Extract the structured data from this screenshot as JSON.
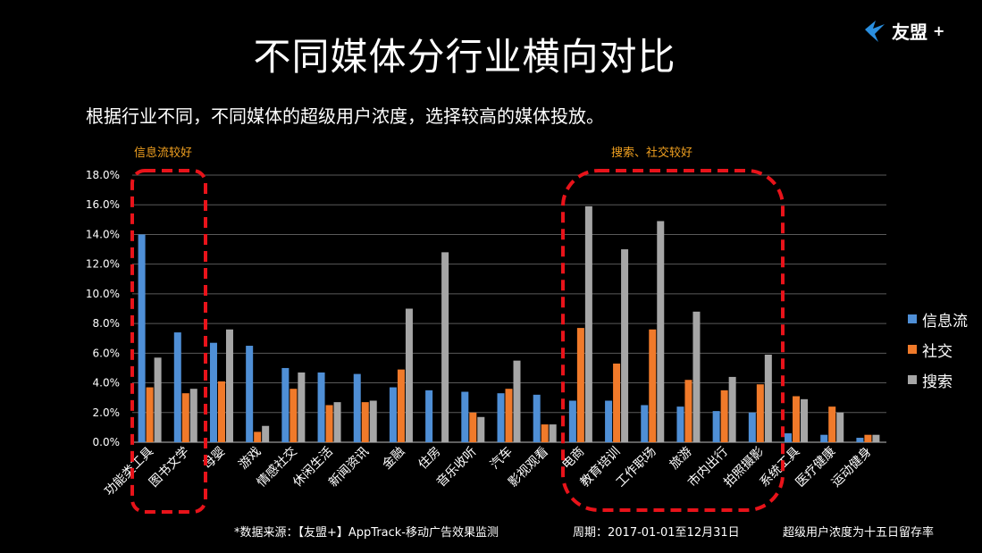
{
  "header": {
    "title": "不同媒体分行业横向对比",
    "logo_text": "友盟",
    "logo_plus": "+"
  },
  "subtitle": "根据行业不同，不同媒体的超级用户浓度，选择较高的媒体投放。",
  "highlights": {
    "left_label": "信息流较好",
    "right_label": "搜索、社交较好",
    "box_color": "#e8131a"
  },
  "footer": {
    "source": "*数据来源：【友盟+】AppTrack-移动广告效果监测",
    "period": "周期：2017-01-01至12月31日",
    "note": "超级用户浓度为十五日留存率"
  },
  "legend": {
    "items": [
      {
        "label": "信息流",
        "color": "#4f8fd6"
      },
      {
        "label": "社交",
        "color": "#f07a2a"
      },
      {
        "label": "搜索",
        "color": "#a6a6a6"
      }
    ]
  },
  "chart_data": {
    "type": "bar",
    "categories": [
      "功能类工具",
      "图书文学",
      "母婴",
      "游戏",
      "情感社交",
      "休闲生活",
      "新闻资讯",
      "金融",
      "住房",
      "音乐收听",
      "汽车",
      "影视观看",
      "电商",
      "教育培训",
      "工作职场",
      "旅游",
      "市内出行",
      "拍照摄影",
      "系统工具",
      "医疗健康",
      "运动健身"
    ],
    "series": [
      {
        "name": "信息流",
        "color": "#4f8fd6",
        "values": [
          14.0,
          7.4,
          6.7,
          6.5,
          5.0,
          4.7,
          4.6,
          3.7,
          3.5,
          3.4,
          3.3,
          3.2,
          2.8,
          2.8,
          2.5,
          2.4,
          2.1,
          2.0,
          0.6,
          0.5,
          0.3
        ]
      },
      {
        "name": "社交",
        "color": "#f07a2a",
        "values": [
          3.7,
          3.3,
          4.1,
          0.7,
          3.6,
          2.5,
          2.7,
          4.9,
          0,
          2.0,
          3.6,
          1.2,
          7.7,
          5.3,
          7.6,
          4.2,
          3.5,
          3.9,
          3.1,
          2.4,
          0.5
        ]
      },
      {
        "name": "搜索",
        "color": "#a6a6a6",
        "values": [
          5.7,
          3.6,
          7.6,
          1.1,
          4.7,
          2.7,
          2.8,
          9.0,
          12.8,
          1.7,
          5.5,
          1.2,
          15.9,
          13.0,
          14.9,
          8.8,
          4.4,
          5.9,
          2.9,
          2.0,
          0.5
        ]
      }
    ],
    "y_ticks": [
      "0.0%",
      "2.0%",
      "4.0%",
      "6.0%",
      "8.0%",
      "10.0%",
      "12.0%",
      "14.0%",
      "16.0%",
      "18.0%"
    ],
    "ylim": [
      0,
      18
    ],
    "grid": true,
    "legend_position": "right"
  }
}
